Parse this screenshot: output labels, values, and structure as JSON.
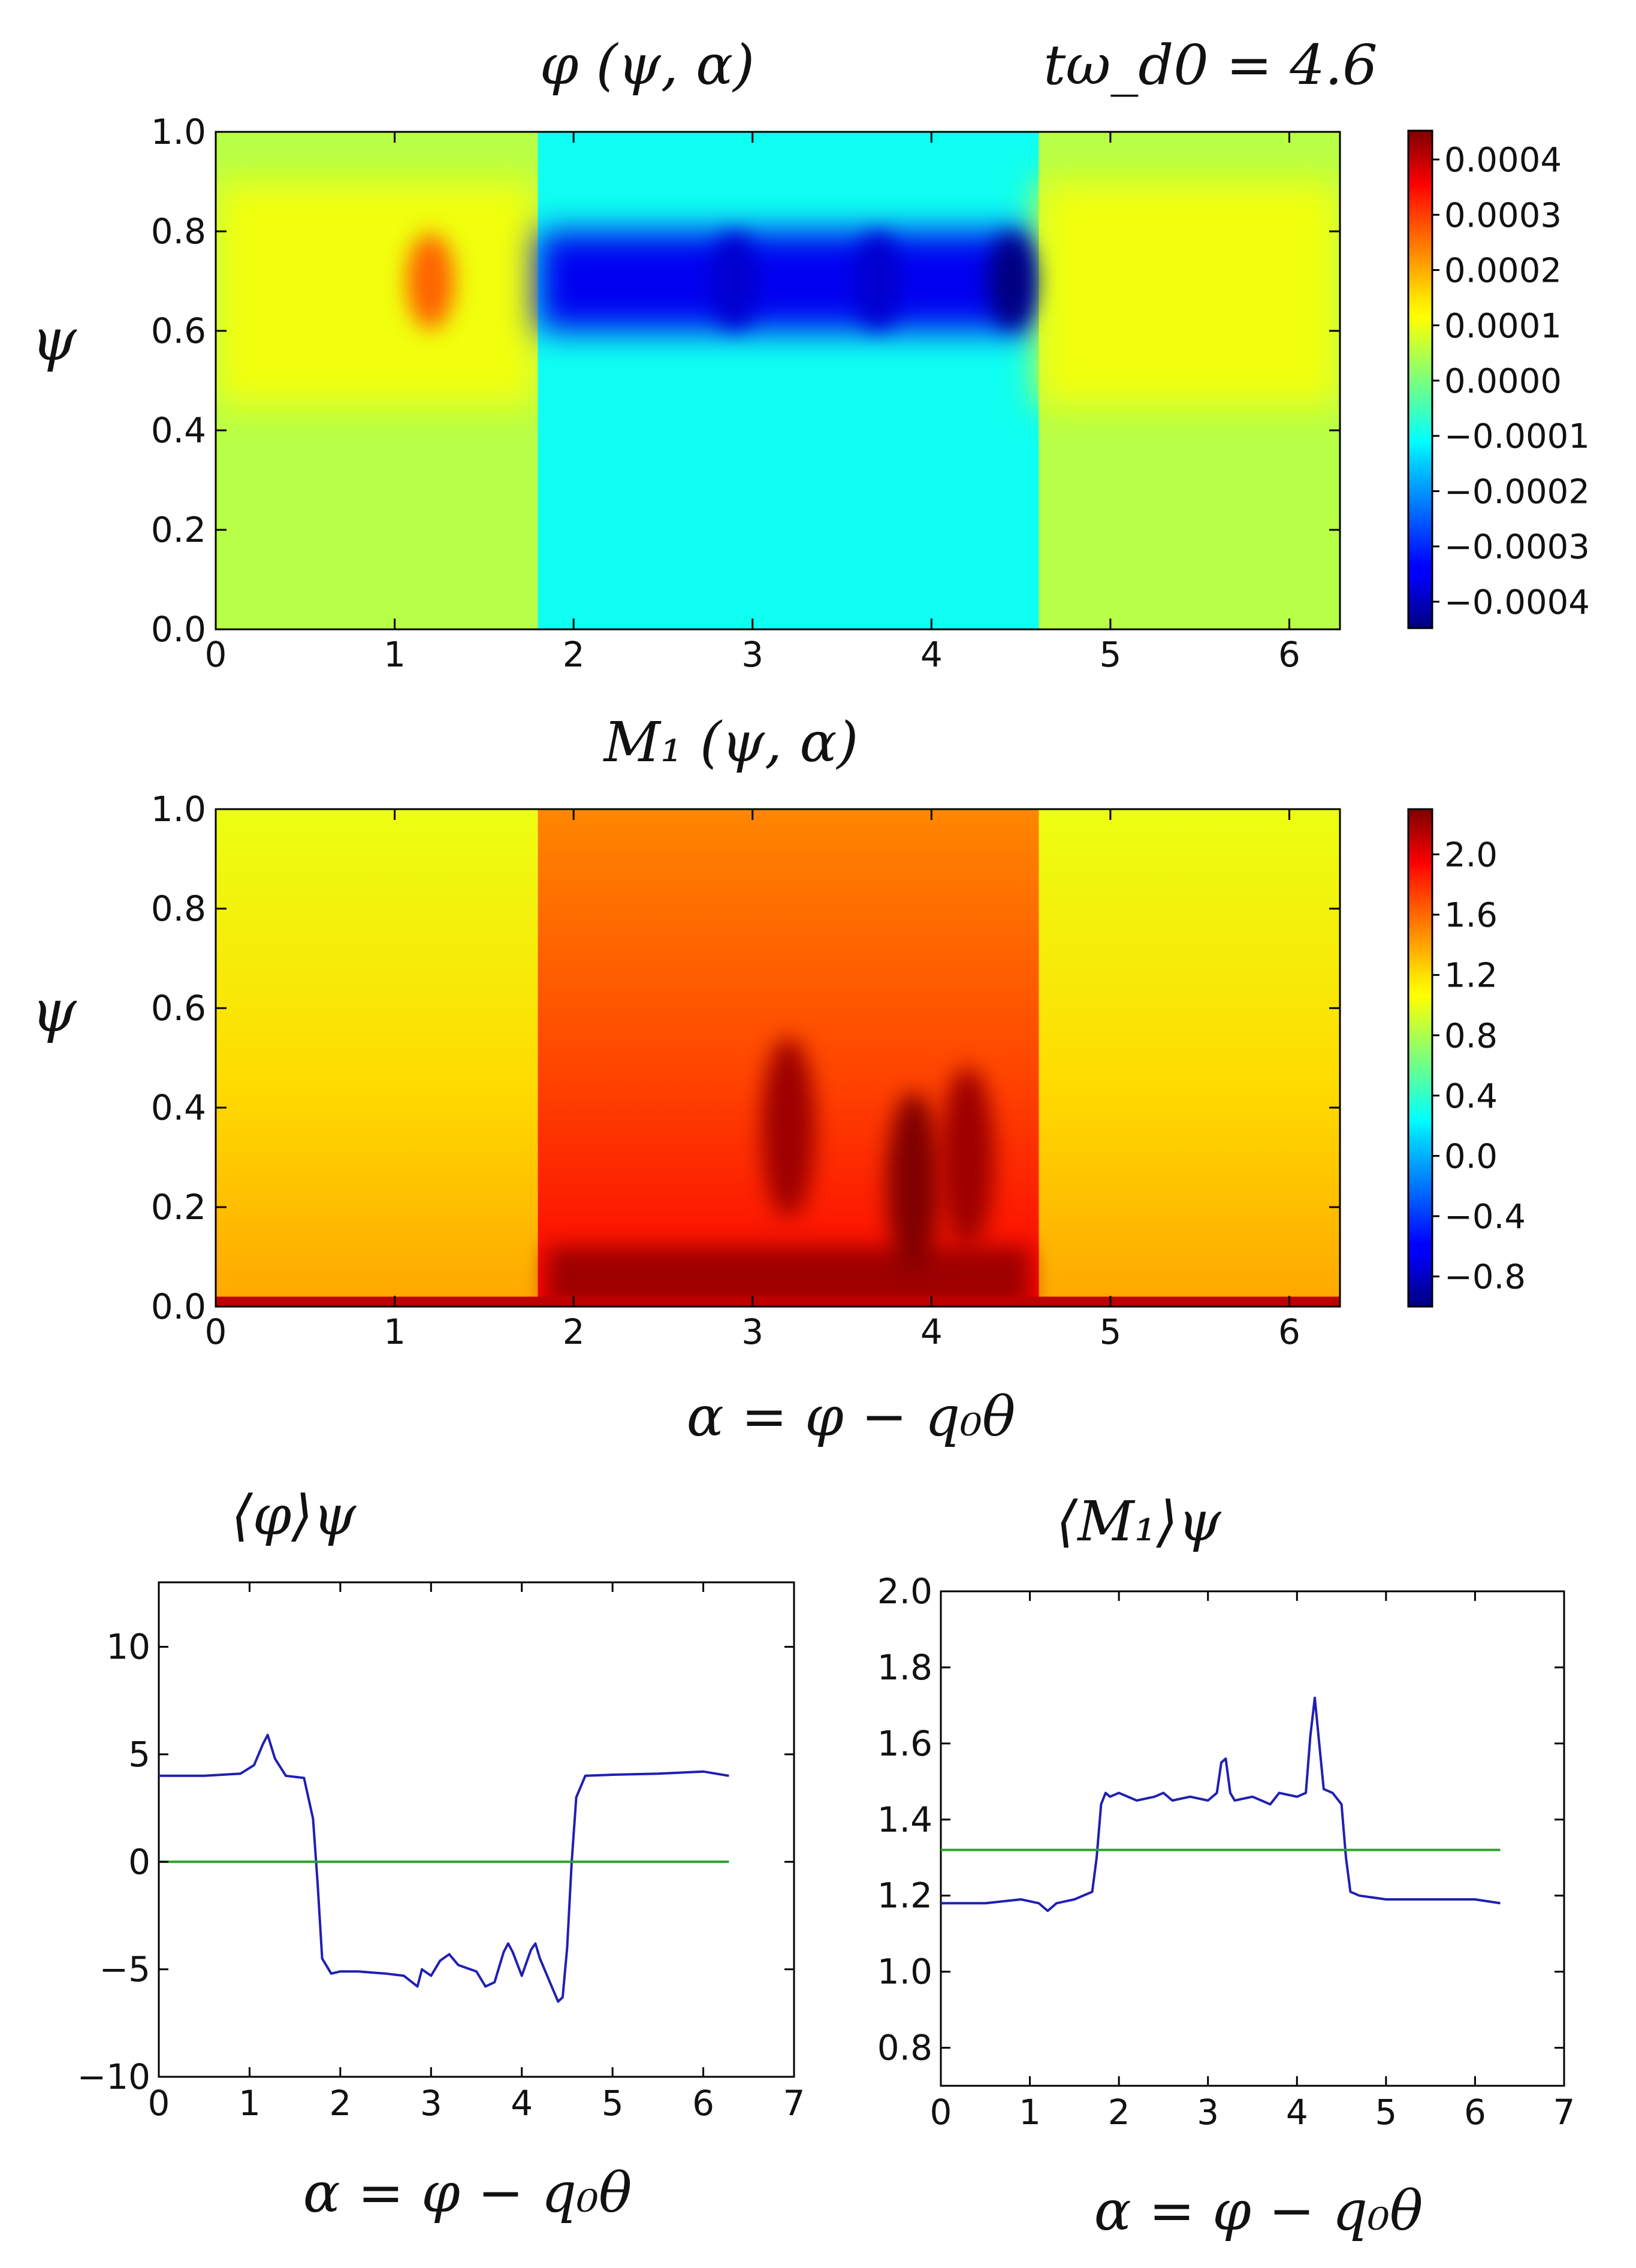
{
  "chart_data": [
    {
      "id": "phi_map",
      "type": "heatmap",
      "title": "φ (ψ, α)",
      "annotation": "tω_d0 = 4.6",
      "ylabel": "ψ",
      "xlabel": "",
      "xlim": [
        0,
        6.283
      ],
      "ylim": [
        0,
        1
      ],
      "x_ticks": [
        "0",
        "1",
        "2",
        "3",
        "4",
        "5",
        "6"
      ],
      "y_ticks": [
        "0.0",
        "0.2",
        "0.4",
        "0.6",
        "0.8",
        "1.0"
      ],
      "colorbar": {
        "min": -0.00045,
        "max": 0.00045,
        "ticks": [
          "0.0004",
          "0.0003",
          "0.0002",
          "0.0001",
          "0.0000",
          "−0.0001",
          "−0.0002",
          "−0.0003",
          "−0.0004"
        ],
        "tick_values": [
          0.0004,
          0.0003,
          0.0002,
          0.0001,
          0,
          -0.0001,
          -0.0002,
          -0.0003,
          -0.0004
        ]
      },
      "regions": [
        {
          "alpha_range": [
            0,
            1.8
          ],
          "level": 5e-05,
          "band_psi": [
            0.45,
            0.9
          ],
          "band_level": 0.0001
        },
        {
          "alpha_range": [
            1.8,
            4.6
          ],
          "level": -0.0001,
          "band_psi": [
            0.6,
            0.8
          ],
          "band_level": -0.00035
        },
        {
          "alpha_range": [
            4.6,
            6.283
          ],
          "level": 5e-05,
          "band_psi": [
            0.45,
            0.9
          ],
          "band_level": 0.0001
        }
      ],
      "features": [
        {
          "alpha": 1.2,
          "psi": 0.7,
          "value": 0.00025
        },
        {
          "alpha": 2.9,
          "psi": 0.7,
          "value": -0.00038
        },
        {
          "alpha": 3.7,
          "psi": 0.7,
          "value": -0.00038
        },
        {
          "alpha": 4.45,
          "psi": 0.7,
          "value": -0.00045
        }
      ]
    },
    {
      "id": "m1_map",
      "type": "heatmap",
      "title": "M₁ (ψ, α)",
      "ylabel": "ψ",
      "xlabel": "α = φ − q₀θ",
      "xlim": [
        0,
        6.283
      ],
      "ylim": [
        0,
        1
      ],
      "x_ticks": [
        "0",
        "1",
        "2",
        "3",
        "4",
        "5",
        "6"
      ],
      "y_ticks": [
        "0.0",
        "0.2",
        "0.4",
        "0.6",
        "0.8",
        "1.0"
      ],
      "colorbar": {
        "min": -1.0,
        "max": 2.3,
        "ticks": [
          "2.0",
          "1.6",
          "1.2",
          "0.8",
          "0.4",
          "0.0",
          "−0.4",
          "−0.8"
        ],
        "tick_values": [
          2.0,
          1.6,
          1.2,
          0.8,
          0.4,
          0.0,
          -0.4,
          -0.8
        ]
      },
      "regions": [
        {
          "alpha_range": [
            0,
            1.8
          ],
          "level_top": 1.0,
          "level_bottom": 1.35
        },
        {
          "alpha_range": [
            1.8,
            4.6
          ],
          "level_top": 1.45,
          "level_bottom": 1.9
        },
        {
          "alpha_range": [
            4.6,
            6.283
          ],
          "level_top": 1.0,
          "level_bottom": 1.35
        }
      ],
      "features": [
        {
          "alpha": 3.2,
          "psi": 0.36,
          "value": 2.2
        },
        {
          "alpha": 3.9,
          "psi": 0.25,
          "value": 2.3
        },
        {
          "alpha": 4.2,
          "psi": 0.3,
          "value": 2.2
        }
      ]
    },
    {
      "id": "phi_avg",
      "type": "line",
      "title": "⟨φ⟩ψ",
      "xlabel": "α = φ − q₀θ",
      "ylabel": "",
      "xlim": [
        0,
        7
      ],
      "ylim": [
        -10,
        13
      ],
      "x_ticks": [
        "0",
        "1",
        "2",
        "3",
        "4",
        "5",
        "6",
        "7"
      ],
      "y_ticks": [
        "10",
        "5",
        "0",
        "−5",
        "−10"
      ],
      "y_tick_values": [
        10,
        5,
        0,
        -5,
        -10
      ],
      "series": [
        {
          "name": "phi_avg",
          "color": "#1f1fb4",
          "x": [
            0,
            0.5,
            0.9,
            1.05,
            1.15,
            1.2,
            1.28,
            1.4,
            1.6,
            1.7,
            1.75,
            1.8,
            1.9,
            2.0,
            2.2,
            2.5,
            2.7,
            2.85,
            2.9,
            3.0,
            3.1,
            3.2,
            3.3,
            3.5,
            3.6,
            3.7,
            3.8,
            3.85,
            3.9,
            4.0,
            4.1,
            4.15,
            4.2,
            4.3,
            4.4,
            4.45,
            4.5,
            4.55,
            4.6,
            4.7,
            5.0,
            5.5,
            6.0,
            6.283
          ],
          "y": [
            4.0,
            4.0,
            4.1,
            4.5,
            5.5,
            5.9,
            4.8,
            4.0,
            3.9,
            2.0,
            -1.0,
            -4.5,
            -5.2,
            -5.1,
            -5.1,
            -5.2,
            -5.3,
            -5.8,
            -5.0,
            -5.3,
            -4.6,
            -4.3,
            -4.8,
            -5.1,
            -5.8,
            -5.6,
            -4.2,
            -3.8,
            -4.2,
            -5.3,
            -4.1,
            -3.8,
            -4.5,
            -5.5,
            -6.5,
            -6.3,
            -4.0,
            0.0,
            3.0,
            4.0,
            4.05,
            4.1,
            4.2,
            4.0
          ]
        },
        {
          "name": "mean",
          "color": "#2ca02c",
          "x": [
            0,
            6.283
          ],
          "y": [
            0,
            0
          ]
        }
      ]
    },
    {
      "id": "m1_avg",
      "type": "line",
      "title": "⟨M₁⟩ψ",
      "xlabel": "α = φ − q₀θ",
      "ylabel": "",
      "xlim": [
        0,
        7
      ],
      "ylim": [
        0.7,
        2.0
      ],
      "x_ticks": [
        "0",
        "1",
        "2",
        "3",
        "4",
        "5",
        "6",
        "7"
      ],
      "y_ticks": [
        "2.0",
        "1.8",
        "1.6",
        "1.4",
        "1.2",
        "1.0",
        "0.8"
      ],
      "y_tick_values": [
        2.0,
        1.8,
        1.6,
        1.4,
        1.2,
        1.0,
        0.8
      ],
      "series": [
        {
          "name": "m1_avg",
          "color": "#1f1fb4",
          "x": [
            0,
            0.5,
            0.9,
            1.1,
            1.2,
            1.3,
            1.5,
            1.7,
            1.75,
            1.8,
            1.85,
            1.9,
            2.0,
            2.2,
            2.4,
            2.5,
            2.6,
            2.8,
            3.0,
            3.1,
            3.15,
            3.2,
            3.25,
            3.3,
            3.5,
            3.6,
            3.7,
            3.8,
            4.0,
            4.1,
            4.15,
            4.2,
            4.25,
            4.3,
            4.4,
            4.5,
            4.55,
            4.6,
            4.7,
            5.0,
            5.5,
            6.0,
            6.283
          ],
          "y": [
            1.18,
            1.18,
            1.19,
            1.18,
            1.16,
            1.18,
            1.19,
            1.21,
            1.3,
            1.44,
            1.47,
            1.46,
            1.47,
            1.45,
            1.46,
            1.47,
            1.45,
            1.46,
            1.45,
            1.47,
            1.55,
            1.56,
            1.47,
            1.45,
            1.46,
            1.45,
            1.44,
            1.47,
            1.46,
            1.47,
            1.62,
            1.72,
            1.6,
            1.48,
            1.47,
            1.44,
            1.3,
            1.21,
            1.2,
            1.19,
            1.19,
            1.19,
            1.18
          ]
        },
        {
          "name": "mean",
          "color": "#2ca02c",
          "x": [
            0,
            6.283
          ],
          "y": [
            1.32,
            1.32
          ]
        }
      ]
    }
  ]
}
